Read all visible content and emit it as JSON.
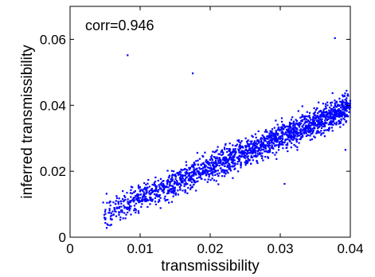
{
  "chart_data": {
    "type": "scatter",
    "title": "",
    "xlabel": "transmissibility",
    "ylabel": "inferred transmissibility",
    "xlim": [
      0,
      0.04
    ],
    "ylim": [
      0,
      0.07
    ],
    "xticks": [
      "0",
      "0.01",
      "0.02",
      "0.03",
      "0.04"
    ],
    "yticks": [
      "0",
      "0.02",
      "0.04",
      "0.06"
    ],
    "xtick_values": [
      0,
      0.01,
      0.02,
      0.03,
      0.04
    ],
    "ytick_values": [
      0,
      0.02,
      0.04,
      0.06
    ],
    "annotation": "corr=0.946",
    "grid": false,
    "marker_color": "#0000ff",
    "outliers": [
      [
        0.0082,
        0.0552
      ],
      [
        0.0175,
        0.0497
      ],
      [
        0.0378,
        0.0604
      ],
      [
        0.0393,
        0.0265
      ],
      [
        0.0306,
        0.0162
      ],
      [
        0.0052,
        0.0132
      ]
    ],
    "bulk": {
      "count": 1900,
      "x_range": [
        0.0045,
        0.04
      ],
      "trend_intercept": 0.0028,
      "trend_slope": 0.92,
      "spread": 0.0022
    }
  }
}
